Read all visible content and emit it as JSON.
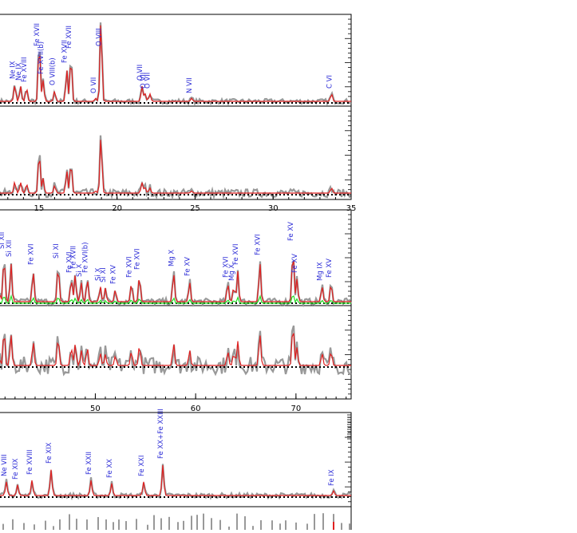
{
  "colors": {
    "data": "#999999",
    "model": "#e02020",
    "component": "#22dd22",
    "label": "#2a2ad6",
    "axis": "#000000",
    "zero": "#000000"
  },
  "chart_data": [
    {
      "type": "line",
      "panel": "top",
      "x_ticks": [
        "15",
        "20",
        "25",
        "30",
        "35"
      ],
      "xlim": [
        12.5,
        35
      ],
      "lines": [
        {
          "x": 13.45,
          "label": "Ne IX"
        },
        {
          "x": 13.82,
          "label": "Ne IX"
        },
        {
          "x": 14.2,
          "label": "Fe XVIII"
        },
        {
          "x": 15.01,
          "label": "Fe XVII"
        },
        {
          "x": 15.26,
          "label": "Fe XVII(b)"
        },
        {
          "x": 16.0,
          "label": "O VIII(b)"
        },
        {
          "x": 16.78,
          "label": "Fe XVII"
        },
        {
          "x": 17.05,
          "label": "Fe XVII"
        },
        {
          "x": 18.63,
          "label": "O VII"
        },
        {
          "x": 18.97,
          "label": "O VIII"
        },
        {
          "x": 21.6,
          "label": "O VII"
        },
        {
          "x": 21.8,
          "label": "O VII"
        },
        {
          "x": 22.1,
          "label": "O VII"
        },
        {
          "x": 24.78,
          "label": "N VII"
        },
        {
          "x": 33.74,
          "label": "C VI"
        }
      ]
    },
    {
      "type": "line",
      "panel": "middle",
      "x_ticks": [
        "50",
        "60",
        "70"
      ],
      "xlim": [
        40.5,
        75.5
      ],
      "lines": [
        {
          "x": 40.3,
          "label": "Si XII"
        },
        {
          "x": 40.9,
          "label": "Si XII"
        },
        {
          "x": 41.6,
          "label": "Si XII"
        },
        {
          "x": 43.8,
          "label": "Fe XVI"
        },
        {
          "x": 46.3,
          "label": "Si XI"
        },
        {
          "x": 47.6,
          "label": "Fe XVI"
        },
        {
          "x": 48.0,
          "label": "Fe XVII"
        },
        {
          "x": 48.6,
          "label": "Si X"
        },
        {
          "x": 49.2,
          "label": "Fe XVI(b)"
        },
        {
          "x": 50.5,
          "label": "Si X"
        },
        {
          "x": 51.0,
          "label": "Si XI"
        },
        {
          "x": 52.0,
          "label": "Fe XV"
        },
        {
          "x": 53.6,
          "label": "Fe XVI"
        },
        {
          "x": 54.4,
          "label": "Fe XVI"
        },
        {
          "x": 57.8,
          "label": "Mg X"
        },
        {
          "x": 59.4,
          "label": "Fe XV"
        },
        {
          "x": 63.2,
          "label": "Fe XVI"
        },
        {
          "x": 63.8,
          "label": "Mg X"
        },
        {
          "x": 64.2,
          "label": "Fe XVI"
        },
        {
          "x": 66.4,
          "label": "Fe XVI"
        },
        {
          "x": 69.7,
          "label": "Fe XV"
        },
        {
          "x": 70.1,
          "label": "Fe XV"
        },
        {
          "x": 72.6,
          "label": "Mg IX"
        },
        {
          "x": 73.5,
          "label": "Fe XV"
        }
      ]
    },
    {
      "type": "line",
      "panel": "bottom",
      "lines": [
        {
          "label": "Ne VIII"
        },
        {
          "label": "Fe XIX"
        },
        {
          "label": "Fe XVIII"
        },
        {
          "label": "Fe XIX"
        },
        {
          "label": "Fe XXII"
        },
        {
          "label": "Fe XX"
        },
        {
          "label": "Fe XXI"
        },
        {
          "label": "Fe XX+Fe XXIII"
        },
        {
          "label": "Fe IX"
        }
      ]
    }
  ]
}
